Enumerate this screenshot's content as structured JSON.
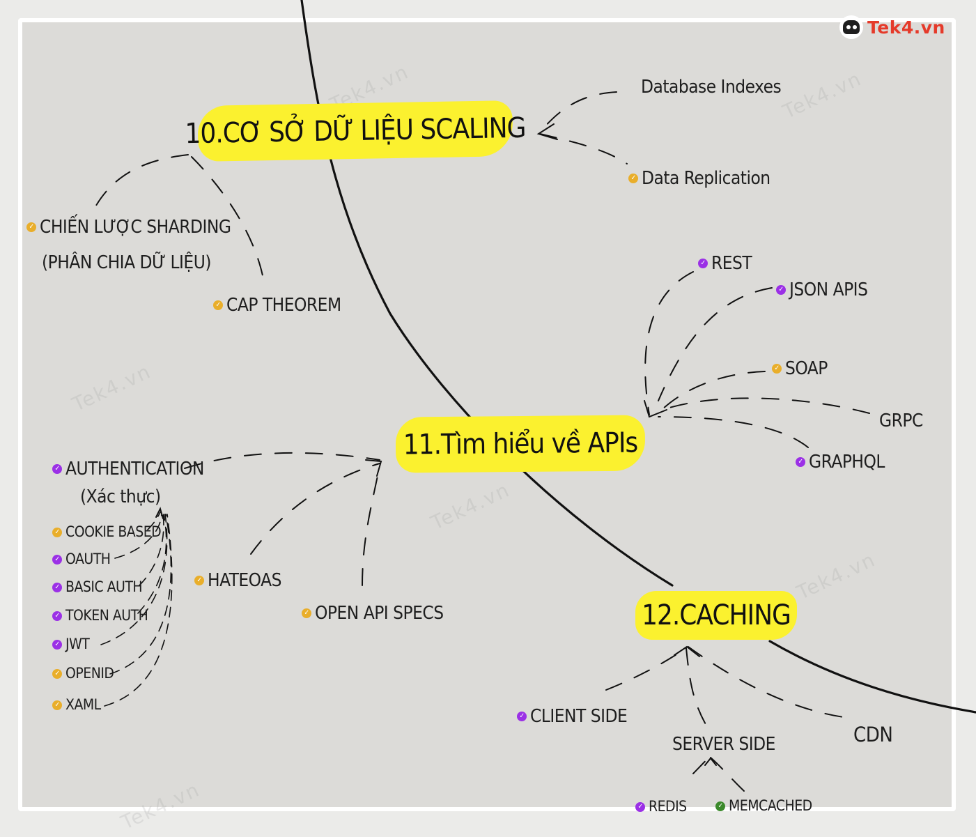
{
  "brand": {
    "logo_text": "Tek4.vn",
    "watermark": "Tek4.vn",
    "accent": "#e53a2a"
  },
  "colors": {
    "highlight": "#fbf12f",
    "check_yellow": "#e9ae2a",
    "check_purple": "#9b30e6",
    "check_green": "#3c8a2c"
  },
  "topics": {
    "scaling": "10.Cơ sở dữ liệu scaling",
    "apis": "11.Tìm hiểu về APIs",
    "caching": "12.CACHING"
  },
  "scaling_items": {
    "db_indexes": "Database Indexes",
    "replication": "Data Replication",
    "sharding": "Chiến lược sharding",
    "sharding_sub": "(phân chia dữ liệu)",
    "cap": "CAP THEOREM"
  },
  "api_styles": {
    "rest": "REST",
    "json": "JSON APIS",
    "soap": "SOAP",
    "grpc": "GRPC",
    "graphql": "GRAPHQL"
  },
  "api_other": {
    "auth": "AUTHENTICATION",
    "auth_sub": "(Xác thực)",
    "hateoas": "HATEOAS",
    "openapi": "OPEN API SPECS"
  },
  "auth_methods": {
    "cookie": "COOKIE BASED",
    "oauth": "OAUTH",
    "basic": "BASIC AUTH",
    "token": "TOKEN AUTH",
    "jwt": "JWT",
    "openid": "OPENID",
    "xaml": "XAML"
  },
  "caching_items": {
    "client": "CLIENT SIDE",
    "server": "SERVER SIDE",
    "cdn": "CDN",
    "redis": "REDIS",
    "memcached": "MEMCACHED"
  }
}
